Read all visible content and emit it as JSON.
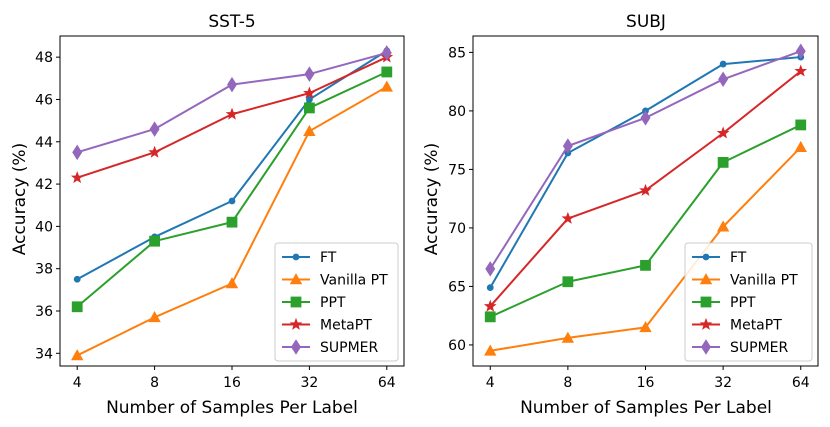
{
  "chart_data": [
    {
      "type": "line",
      "title": "SST-5",
      "xlabel": "Number of Samples Per Label",
      "ylabel": "Accuracy (%)",
      "categories": [
        "4",
        "8",
        "16",
        "32",
        "64"
      ],
      "ylim": [
        33.4,
        49.0
      ],
      "yticks": [
        34,
        36,
        38,
        40,
        42,
        44,
        46,
        48
      ],
      "legend_position": "bottom-right",
      "series": [
        {
          "name": "FT",
          "color": "#1f77b4",
          "marker": "circle",
          "values": [
            37.5,
            39.5,
            41.2,
            46.0,
            48.3
          ]
        },
        {
          "name": "Vanilla PT",
          "color": "#ff7f0e",
          "marker": "triangle",
          "values": [
            33.9,
            35.7,
            37.3,
            44.5,
            46.6
          ]
        },
        {
          "name": "PPT",
          "color": "#2ca02c",
          "marker": "square",
          "values": [
            36.2,
            39.3,
            40.2,
            45.6,
            47.3
          ]
        },
        {
          "name": "MetaPT",
          "color": "#d62728",
          "marker": "star",
          "values": [
            42.3,
            43.5,
            45.3,
            46.3,
            48.0
          ]
        },
        {
          "name": "SUPMER",
          "color": "#9467bd",
          "marker": "diamond",
          "values": [
            43.5,
            44.6,
            46.7,
            47.2,
            48.2
          ]
        }
      ]
    },
    {
      "type": "line",
      "title": "SUBJ",
      "xlabel": "Number of Samples Per Label",
      "ylabel": "Accuracy (%)",
      "categories": [
        "4",
        "8",
        "16",
        "32",
        "64"
      ],
      "ylim": [
        58.2,
        86.4
      ],
      "yticks": [
        60,
        65,
        70,
        75,
        80,
        85
      ],
      "legend_position": "bottom-right",
      "series": [
        {
          "name": "FT",
          "color": "#1f77b4",
          "marker": "circle",
          "values": [
            64.9,
            76.4,
            80.0,
            84.0,
            84.6
          ]
        },
        {
          "name": "Vanilla PT",
          "color": "#ff7f0e",
          "marker": "triangle",
          "values": [
            59.5,
            60.6,
            61.5,
            70.1,
            76.9
          ]
        },
        {
          "name": "PPT",
          "color": "#2ca02c",
          "marker": "square",
          "values": [
            62.4,
            65.4,
            66.8,
            75.6,
            78.8
          ]
        },
        {
          "name": "MetaPT",
          "color": "#d62728",
          "marker": "star",
          "values": [
            63.3,
            70.8,
            73.2,
            78.1,
            83.4
          ]
        },
        {
          "name": "SUPMER",
          "color": "#9467bd",
          "marker": "diamond",
          "values": [
            66.5,
            77.0,
            79.4,
            82.7,
            85.1
          ]
        }
      ]
    }
  ]
}
